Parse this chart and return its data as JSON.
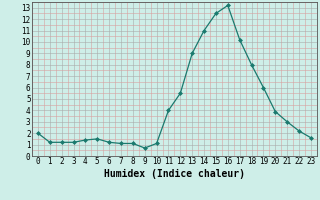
{
  "x": [
    0,
    1,
    2,
    3,
    4,
    5,
    6,
    7,
    8,
    9,
    10,
    11,
    12,
    13,
    14,
    15,
    16,
    17,
    18,
    19,
    20,
    21,
    22,
    23
  ],
  "y": [
    2,
    1.2,
    1.2,
    1.2,
    1.4,
    1.5,
    1.2,
    1.1,
    1.1,
    0.7,
    1.1,
    4.0,
    5.5,
    9.0,
    11.0,
    12.5,
    13.2,
    10.2,
    8.0,
    6.0,
    3.9,
    3.0,
    2.2,
    1.6
  ],
  "line_color": "#1a7a6e",
  "marker": "D",
  "markersize": 2.0,
  "linewidth": 0.9,
  "bg_color": "#ceeee8",
  "xlabel": "Humidex (Indice chaleur)",
  "xlim": [
    -0.5,
    23.5
  ],
  "ylim": [
    0,
    13.5
  ],
  "xticks": [
    0,
    1,
    2,
    3,
    4,
    5,
    6,
    7,
    8,
    9,
    10,
    11,
    12,
    13,
    14,
    15,
    16,
    17,
    18,
    19,
    20,
    21,
    22,
    23
  ],
  "yticks": [
    0,
    1,
    2,
    3,
    4,
    5,
    6,
    7,
    8,
    9,
    10,
    11,
    12,
    13
  ],
  "tick_fontsize": 5.5,
  "xlabel_fontsize": 7.0,
  "major_grid_color": "#aaaaaa",
  "minor_grid_color": "#d8a0a0"
}
